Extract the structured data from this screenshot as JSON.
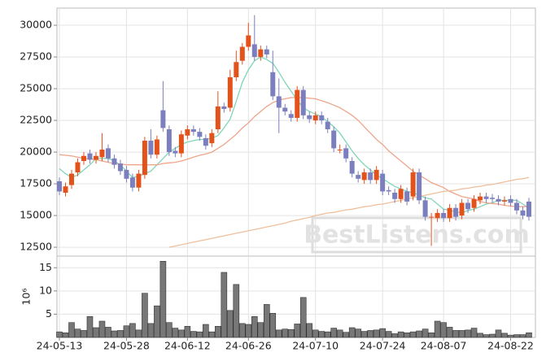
{
  "chart_data": [
    {
      "type": "candlestick",
      "open": [
        17700,
        16800,
        17400,
        18400,
        19300,
        19900,
        19400,
        19600,
        20300,
        19500,
        19100,
        18600,
        18000,
        17200,
        18200,
        20900,
        19800,
        23300,
        21800,
        20100,
        19900,
        21300,
        21800,
        21600,
        21100,
        20700,
        21800,
        23600,
        23500,
        25900,
        27200,
        28300,
        28500,
        27500,
        28100,
        26300,
        24400,
        23500,
        23000,
        22700,
        24900,
        22900,
        22500,
        22900,
        22400,
        21700,
        20200,
        20300,
        19300,
        18200,
        17800,
        18400,
        17800,
        18300,
        17000,
        16800,
        16300,
        16900,
        16500,
        18400,
        16200,
        14900,
        14800,
        15200,
        14800,
        15600,
        15000,
        16000,
        15600,
        16200,
        16500,
        16400,
        16300,
        16100,
        16300,
        16000,
        15400,
        16100
      ],
      "high": [
        18000,
        17600,
        18600,
        19500,
        20000,
        20200,
        20000,
        21500,
        20600,
        19800,
        19400,
        18900,
        18300,
        18600,
        21200,
        21800,
        21300,
        25600,
        22100,
        20400,
        21700,
        22100,
        22100,
        21900,
        21400,
        21800,
        24800,
        23900,
        26500,
        28000,
        28600,
        30200,
        30800,
        28400,
        28400,
        28000,
        25800,
        23800,
        23300,
        25200,
        25200,
        23200,
        23200,
        23200,
        22700,
        22000,
        20600,
        20600,
        19600,
        18500,
        18700,
        18700,
        18900,
        18600,
        17300,
        17100,
        17400,
        17200,
        18700,
        18700,
        16500,
        15200,
        15500,
        15500,
        15900,
        15900,
        16300,
        16300,
        16600,
        16800,
        16800,
        16700,
        16600,
        16500,
        16600,
        16300,
        15700,
        16400
      ],
      "low": [
        16600,
        16500,
        17100,
        18100,
        19000,
        19100,
        19100,
        19300,
        19200,
        18700,
        18200,
        17600,
        16900,
        16900,
        17900,
        19500,
        19500,
        21600,
        19700,
        19600,
        19600,
        21000,
        21300,
        20900,
        20200,
        20400,
        21500,
        23100,
        23200,
        25600,
        26900,
        28000,
        27200,
        27200,
        27400,
        24100,
        21500,
        22900,
        22400,
        22400,
        22600,
        22300,
        22200,
        22200,
        21500,
        20000,
        19900,
        19200,
        18000,
        17600,
        17500,
        17500,
        17500,
        16600,
        16600,
        16000,
        16000,
        15800,
        16200,
        15900,
        14600,
        12600,
        14500,
        14500,
        14500,
        14600,
        14700,
        15200,
        15300,
        15900,
        16000,
        16000,
        15800,
        15800,
        15700,
        15100,
        14700,
        14600
      ],
      "close": [
        16900,
        17300,
        18300,
        19200,
        19700,
        19400,
        19700,
        20200,
        19500,
        19000,
        18500,
        17900,
        17200,
        18300,
        20900,
        19800,
        21000,
        21900,
        20000,
        19900,
        21400,
        21800,
        21600,
        21200,
        20500,
        21500,
        23600,
        23400,
        25900,
        27100,
        28300,
        29200,
        27500,
        28100,
        27700,
        24400,
        23500,
        23200,
        22700,
        24900,
        22900,
        22600,
        22900,
        22500,
        21800,
        20300,
        20200,
        19500,
        18300,
        17900,
        18400,
        17800,
        18600,
        16900,
        16900,
        16300,
        17100,
        16100,
        18400,
        16200,
        14900,
        14900,
        15200,
        14800,
        15600,
        14900,
        16000,
        15500,
        16300,
        16500,
        16300,
        16300,
        16100,
        16200,
        16000,
        15400,
        15000,
        14900
      ],
      "up_color": "#e4521c",
      "down_color": "#7c7fbd",
      "series": [
        {
          "color": "#7fd6b8",
          "values": [
            18700,
            18300,
            18000,
            18200,
            18600,
            19000,
            19500,
            19500,
            19500,
            19300,
            19000,
            18500,
            18000,
            18100,
            18300,
            18500,
            19000,
            19500,
            20000,
            20300,
            20600,
            20800,
            20900,
            21000,
            21000,
            21100,
            21300,
            21900,
            22600,
            24000,
            25500,
            26500,
            27200,
            27500,
            27300,
            27000,
            26300,
            25500,
            24800,
            24100,
            23500,
            23200,
            23000,
            22800,
            22400,
            22000,
            21500,
            20800,
            20100,
            19500,
            19000,
            18600,
            18200,
            17900,
            17600,
            17300,
            17100,
            16900,
            16800,
            16600,
            16400,
            16300,
            15900,
            15500,
            15400,
            15300,
            15200,
            15400,
            15500,
            15700,
            15900,
            16000,
            16200,
            16200,
            16200,
            16200,
            15900,
            15600
          ]
        },
        {
          "color": "#eea58a",
          "values": [
            19800,
            19750,
            19700,
            19600,
            19500,
            19450,
            19400,
            19300,
            19200,
            19100,
            19050,
            19000,
            19000,
            19000,
            19000,
            19000,
            19000,
            19100,
            19150,
            19200,
            19300,
            19450,
            19600,
            19750,
            19850,
            20000,
            20300,
            20600,
            21000,
            21400,
            21900,
            22300,
            22800,
            23200,
            23600,
            23900,
            24100,
            24200,
            24300,
            24300,
            24300,
            24250,
            24200,
            24050,
            23900,
            23700,
            23500,
            23200,
            22900,
            22500,
            22000,
            21500,
            21000,
            20600,
            20100,
            19700,
            19300,
            18900,
            18500,
            18200,
            17900,
            17600,
            17400,
            17200,
            16900,
            16700,
            16500,
            16400,
            16300,
            16100,
            16000,
            15950,
            15900,
            15800,
            15750,
            15700,
            15700,
            15700
          ]
        },
        {
          "color": "#efbf9c",
          "values": [
            null,
            null,
            null,
            null,
            null,
            null,
            null,
            null,
            null,
            null,
            null,
            null,
            null,
            null,
            null,
            null,
            null,
            null,
            12500,
            12600,
            12700,
            12800,
            12900,
            13000,
            13100,
            13200,
            13300,
            13400,
            13500,
            13600,
            13700,
            13800,
            13900,
            14000,
            14100,
            14200,
            14300,
            14400,
            14550,
            14650,
            14750,
            14850,
            15000,
            15100,
            15200,
            15250,
            15350,
            15450,
            15500,
            15600,
            15700,
            15750,
            15850,
            15900,
            16000,
            16100,
            16200,
            16300,
            16400,
            16500,
            16600,
            16700,
            16800,
            16900,
            16950,
            17000,
            17100,
            17150,
            17250,
            17300,
            17400,
            17450,
            17550,
            17650,
            17750,
            17850,
            17900,
            18000
          ]
        }
      ],
      "ylim": [
        11800,
        31350
      ],
      "yticks": [
        12500,
        15000,
        17500,
        20000,
        22500,
        25000,
        27500,
        30000
      ],
      "grid": true,
      "watermark": "BestListens.com"
    },
    {
      "type": "bar",
      "categories": [
        "24-05-13",
        null,
        null,
        null,
        null,
        null,
        null,
        null,
        null,
        null,
        null,
        "24-05-28",
        null,
        null,
        null,
        null,
        null,
        null,
        null,
        null,
        null,
        "24-06-12",
        null,
        null,
        null,
        null,
        null,
        null,
        null,
        null,
        null,
        "24-06-26",
        null,
        null,
        null,
        null,
        null,
        null,
        null,
        null,
        null,
        null,
        "24-07-10",
        null,
        null,
        null,
        null,
        null,
        null,
        null,
        null,
        null,
        null,
        "24-07-24",
        null,
        null,
        null,
        null,
        null,
        null,
        null,
        null,
        null,
        "24-08-07",
        null,
        null,
        null,
        null,
        null,
        null,
        null,
        null,
        null,
        null,
        "24-08-22",
        null,
        null,
        null
      ],
      "values": [
        1.2,
        1.0,
        3.2,
        1.8,
        1.5,
        4.5,
        2.1,
        3.5,
        2.2,
        1.4,
        1.5,
        2.5,
        3.0,
        1.6,
        9.5,
        3.0,
        6.8,
        16.4,
        3.2,
        2.0,
        1.6,
        2.4,
        1.3,
        1.2,
        2.8,
        1.2,
        2.4,
        14.0,
        5.8,
        11.4,
        3.0,
        2.8,
        4.5,
        3.2,
        7.1,
        5.2,
        1.6,
        1.8,
        1.7,
        2.9,
        8.6,
        3.0,
        1.6,
        1.3,
        1.2,
        2.0,
        1.6,
        1.1,
        2.1,
        1.8,
        1.3,
        1.5,
        1.6,
        1.9,
        1.3,
        0.8,
        1.2,
        1.0,
        1.2,
        1.4,
        1.8,
        1.0,
        3.5,
        3.2,
        2.2,
        1.5,
        1.5,
        1.6,
        2.0,
        0.9,
        0.6,
        0.7,
        1.6,
        0.9,
        0.5,
        0.6,
        0.6,
        1.0
      ],
      "color": "#777777",
      "ylim": [
        0,
        17.5
      ],
      "yticks": [
        5,
        10,
        15
      ],
      "ylabel": "10⁶",
      "grid": true
    }
  ]
}
